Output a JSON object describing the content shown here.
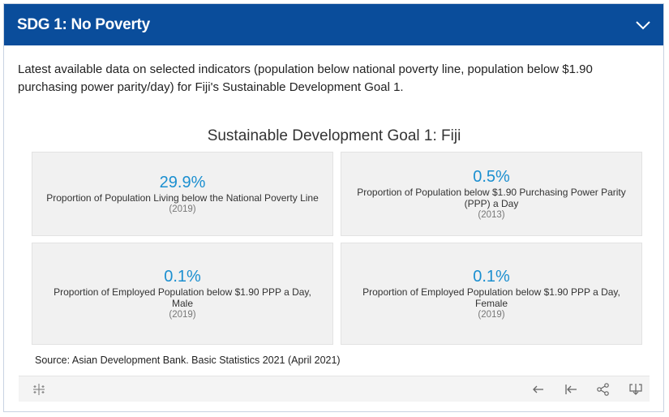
{
  "header": {
    "title": "SDG 1: No Poverty",
    "toggle_icon": "chevron-down-icon"
  },
  "intro": {
    "text": "Latest available data on selected indicators (population below national poverty line, population below $1.90 purchasing power parity/day) for Fiji's Sustainable Development Goal 1."
  },
  "viz": {
    "title": "Sustainable Development Goal 1: Fiji",
    "cards": [
      {
        "value": "29.9%",
        "label": "Proportion of Population Living below the National Poverty Line",
        "year": "(2019)"
      },
      {
        "value": "0.5%",
        "label": "Proportion of Population below $1.90 Purchasing Power Parity (PPP) a Day",
        "year": "(2013)"
      },
      {
        "value": "0.1%",
        "label": "Proportion of Employed Population below $1.90 PPP a Day, Male",
        "year": "(2019)"
      },
      {
        "value": "0.1%",
        "label": "Proportion of Employed Population below $1.90 PPP a Day, Female",
        "year": "(2019)"
      }
    ],
    "source": "Source: Asian Development Bank. Basic Statistics 2021 (April 2021)"
  },
  "toolbar": {
    "icons": [
      "tableau-logo-icon",
      "undo-arrow-icon",
      "revert-icon",
      "share-icon",
      "download-icon"
    ]
  },
  "colors": {
    "header_bg": "#0a4d9b",
    "value_color": "#1b8fd0",
    "card_bg": "#f1f1f1"
  }
}
